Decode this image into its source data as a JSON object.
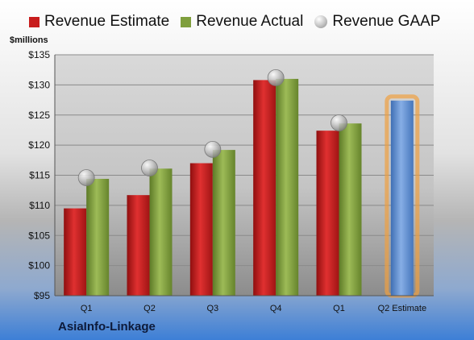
{
  "legend": {
    "estimate_label": "Revenue Estimate",
    "actual_label": "Revenue Actual",
    "gaap_label": "Revenue GAAP"
  },
  "unit_label": "$millions",
  "company_label": "AsiaInfo-Linkage",
  "colors": {
    "estimate": "#c81d1d",
    "actual": "#7f9f3d",
    "gaap": "#b8b8b8",
    "forecast": "#5f8fd0",
    "forecast_glow": "#f0a040"
  },
  "chart_data": {
    "type": "bar",
    "categories": [
      "Q1",
      "Q2",
      "Q3",
      "Q4",
      "Q1",
      "Q2 Estimate"
    ],
    "series": [
      {
        "name": "Revenue Estimate",
        "values": [
          109.5,
          111.7,
          117.0,
          130.8,
          122.4,
          null
        ]
      },
      {
        "name": "Revenue Actual",
        "values": [
          114.4,
          116.1,
          119.2,
          131.0,
          123.6,
          null
        ]
      },
      {
        "name": "Revenue GAAP",
        "values": [
          114.6,
          116.2,
          119.3,
          131.2,
          123.7,
          null
        ]
      }
    ],
    "forecast": {
      "category": "Q2 Estimate",
      "value": 127.4
    },
    "y_ticks": [
      "$95",
      "$100",
      "$105",
      "$110",
      "$115",
      "$120",
      "$125",
      "$130",
      "$135"
    ],
    "ylim": [
      95,
      135
    ],
    "grid": true,
    "legend_position": "top"
  }
}
